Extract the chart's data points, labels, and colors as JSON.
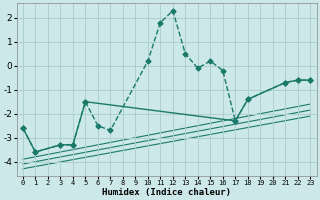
{
  "xlabel": "Humidex (Indice chaleur)",
  "bg_color": "#cce8e8",
  "grid_color": "#b0d0d0",
  "line_color": "#1a7a6a",
  "xlim": [
    -0.5,
    23.5
  ],
  "ylim": [
    -4.6,
    2.6
  ],
  "yticks": [
    -4,
    -3,
    -2,
    -1,
    0,
    1,
    2
  ],
  "xticks": [
    0,
    1,
    2,
    3,
    4,
    5,
    6,
    7,
    8,
    9,
    10,
    11,
    12,
    13,
    14,
    15,
    16,
    17,
    18,
    19,
    20,
    21,
    22,
    23
  ],
  "main_curve": {
    "x": [
      0,
      1,
      3,
      4,
      5,
      6,
      7,
      10,
      11,
      12,
      13,
      14,
      15,
      16,
      17,
      18,
      21,
      22,
      23
    ],
    "y": [
      -2.6,
      -3.6,
      -3.3,
      -3.3,
      -1.5,
      -2.5,
      -2.7,
      0.2,
      1.8,
      2.3,
      0.5,
      -0.1,
      0.2,
      -0.2,
      -2.3,
      -1.4,
      -0.7,
      -0.6,
      -0.6
    ]
  },
  "solid_curve": {
    "x": [
      0,
      1,
      3,
      4,
      5,
      17,
      18,
      21,
      22,
      23
    ],
    "y": [
      -2.6,
      -3.6,
      -3.3,
      -3.3,
      -1.5,
      -2.3,
      -1.4,
      -0.7,
      -0.6,
      -0.6
    ]
  },
  "diag_lines": [
    {
      "x": [
        0,
        23
      ],
      "y": [
        -3.9,
        -1.6
      ]
    },
    {
      "x": [
        0,
        23
      ],
      "y": [
        -4.1,
        -1.85
      ]
    },
    {
      "x": [
        0,
        23
      ],
      "y": [
        -4.3,
        -2.1
      ]
    }
  ]
}
